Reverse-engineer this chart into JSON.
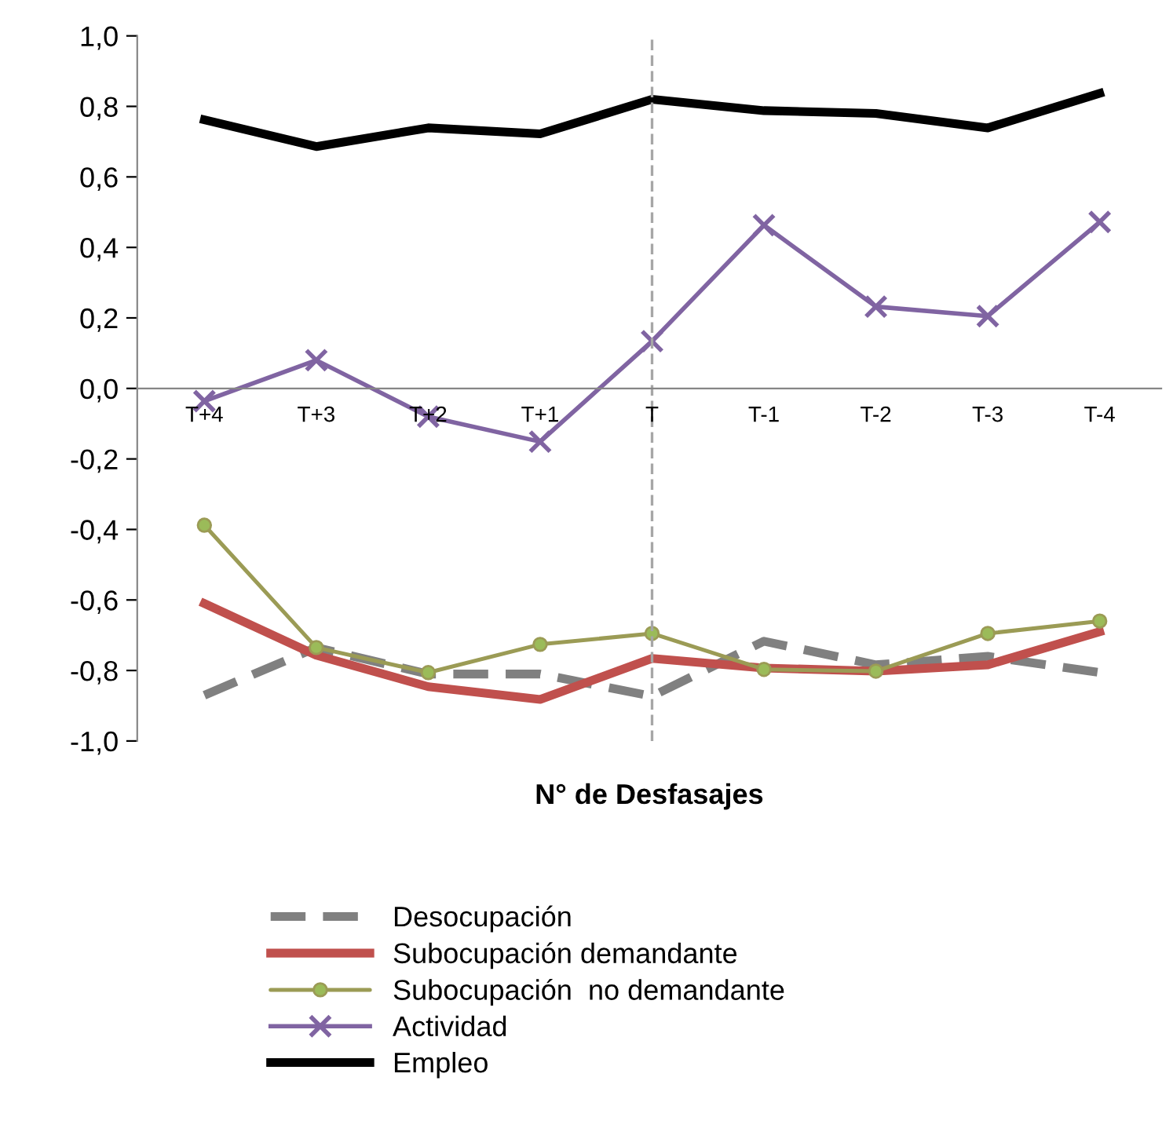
{
  "chart_data": {
    "type": "line",
    "xlabel": "N° de Desfasajes",
    "categories": [
      "T+4",
      "T+3",
      "T+2",
      "T+1",
      "T",
      "T-1",
      "T-2",
      "T-3",
      "T-4"
    ],
    "series": [
      {
        "name": "Desocupación",
        "color": "#808080",
        "line_style": "dashed",
        "marker": "none",
        "values": [
          -0.87,
          -0.735,
          -0.81,
          -0.81,
          -0.873,
          -0.717,
          -0.784,
          -0.76,
          -0.806
        ]
      },
      {
        "name": "Subocupación demandante",
        "color": "#c0504d",
        "line_style": "solid",
        "marker": "none",
        "values": [
          -0.61,
          -0.757,
          -0.846,
          -0.882,
          -0.766,
          -0.793,
          -0.802,
          -0.784,
          -0.69
        ]
      },
      {
        "name": "Subocupación  no demandante",
        "color": "#9b9b55",
        "line_style": "solid",
        "marker": "circle",
        "values": [
          -0.388,
          -0.735,
          -0.806,
          -0.726,
          -0.695,
          -0.797,
          -0.802,
          -0.695,
          -0.66
        ]
      },
      {
        "name": "Actividad",
        "color": "#8064a2",
        "line_style": "solid",
        "marker": "cross",
        "values": [
          -0.036,
          0.08,
          -0.08,
          -0.151,
          0.134,
          0.463,
          0.232,
          0.205,
          0.472
        ]
      },
      {
        "name": "Empleo",
        "color": "#000000",
        "line_style": "solid",
        "marker": "none",
        "values": [
          0.762,
          0.686,
          0.739,
          0.722,
          0.82,
          0.788,
          0.78,
          0.739,
          0.837
        ]
      }
    ],
    "ylim": [
      -1.0,
      1.0
    ],
    "yticks": [
      {
        "value": -1.0,
        "label": "-1,0"
      },
      {
        "value": -0.8,
        "label": "-0,8"
      },
      {
        "value": -0.6,
        "label": "-0,6"
      },
      {
        "value": -0.4,
        "label": "-0,4"
      },
      {
        "value": -0.2,
        "label": "-0,2"
      },
      {
        "value": 0.0,
        "label": "0,0"
      },
      {
        "value": 0.2,
        "label": "0,2"
      },
      {
        "value": 0.4,
        "label": "0,4"
      },
      {
        "value": 0.6,
        "label": "0,6"
      },
      {
        "value": 0.8,
        "label": "0,8"
      },
      {
        "value": 1.0,
        "label": "1,0"
      }
    ],
    "ref_lines": [
      {
        "axis": "x",
        "value": "T",
        "color": "#a6a6a6",
        "line_style": "dashed"
      }
    ],
    "grid": false,
    "legend": "bottom"
  }
}
